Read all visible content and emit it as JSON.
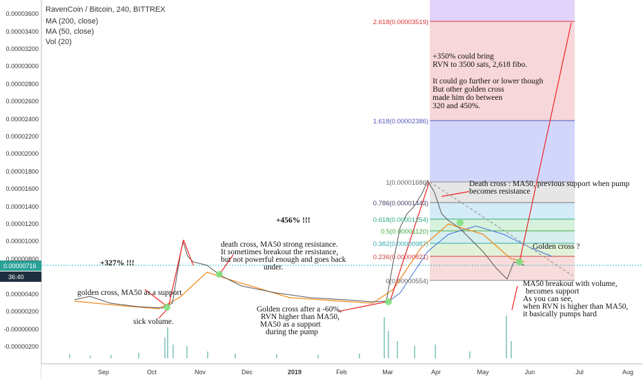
{
  "header": {
    "symbol": "RavenCoin / Bitcoin, 240, BITTREX",
    "indicators": [
      "MA (200, close)",
      "MA (50, close)",
      "Vol (20)"
    ]
  },
  "y_axis": {
    "labels": [
      "0.00003600",
      "0.00003400",
      "0.00003200",
      "0.00003000",
      "0.00002800",
      "0.00002600",
      "0.00002400",
      "0.00002200",
      "0.00002000",
      "0.00001800",
      "0.00001600",
      "0.00001400",
      "0.00001200",
      "0.00001000",
      "0.00000800",
      "0.00000400",
      "0.00000200",
      "-0.00000000",
      "-0.00000200"
    ],
    "price_box": "0.00000716",
    "timer_box": "36:40"
  },
  "x_axis": {
    "labels": [
      "Sep",
      "Oct",
      "Nov",
      "Dec",
      "2019",
      "Feb",
      "Mar",
      "Apr",
      "May",
      "Jun",
      "Jul",
      "Aug"
    ]
  },
  "fib_levels": [
    "2.618(0.00003519)",
    "1.618(0.00002386)",
    "1(0.00001686)",
    "0.786(0.00001443)",
    "0.618(0.00001254)",
    "0.5(0.00001120)",
    "0.382(0.00000987)",
    "0.236(0.00000821)",
    "0(0.00000554)"
  ],
  "annotations": [
    {
      "lines": [
        "+327% !!!"
      ]
    },
    {
      "lines": [
        "+456% !!!"
      ]
    },
    {
      "lines": [
        "golden cross, MA50 as a support"
      ]
    },
    {
      "lines": [
        "sick volume."
      ]
    },
    {
      "lines": [
        "death cross, MA50 strong resistance.",
        "It sometimes breakout the resistance,",
        "but not powerful enough  and goes back",
        "under."
      ]
    },
    {
      "lines": [
        "Golden cross after a -60%,",
        "RVN higher than MA50,",
        "MA50 as a support",
        "during the pump"
      ]
    },
    {
      "lines": [
        "+350% could bring",
        "RVN to 3500 sats, 2,618 fibo.",
        "It could go further or lower though",
        "But other golden cross",
        "made him do between",
        "320 and 450%."
      ]
    },
    {
      "lines": [
        "Death cross : MA50, previous support when pump",
        "becomes resistance"
      ]
    },
    {
      "lines": [
        "Golden cross ?"
      ]
    },
    {
      "lines": [
        "MA50 breakout with volume,",
        "becomes support",
        "As you can see,",
        "when RVN is higher than MA50,",
        "it basically pumps hard"
      ]
    }
  ]
}
